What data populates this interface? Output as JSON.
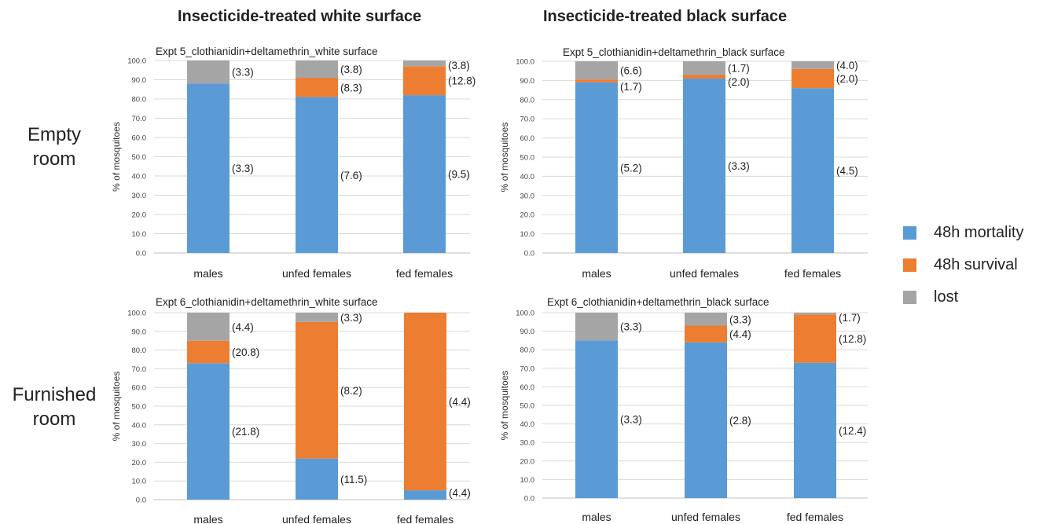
{
  "column_titles": [
    "Insecticide-treated white surface",
    "Insecticide-treated black surface"
  ],
  "row_labels": [
    [
      "Empty",
      "room"
    ],
    [
      "Furnished",
      "room"
    ]
  ],
  "legend": [
    {
      "label": "48h mortality",
      "color": "#5b9bd5"
    },
    {
      "label": "48h survival",
      "color": "#ed7d31"
    },
    {
      "label": "lost",
      "color": "#a5a5a5"
    }
  ],
  "chart_data": [
    {
      "type": "bar",
      "stacked": true,
      "title": "Expt 5_clothianidin+deltamethrin_white  surface",
      "ylabel": "% of mosquitoes",
      "ylim": [
        0,
        100
      ],
      "yticks": [
        "0.0",
        "10.0",
        "20.0",
        "30.0",
        "40.0",
        "50.0",
        "60.0",
        "70.0",
        "80.0",
        "90.0",
        "100.0"
      ],
      "categories": [
        "males",
        "unfed females",
        "fed females"
      ],
      "series": [
        {
          "name": "48h mortality",
          "values": [
            88,
            81,
            82
          ],
          "labels": [
            "(3.3)",
            "(7.6)",
            "(9.5)"
          ]
        },
        {
          "name": "48h survival",
          "values": [
            0,
            10,
            15
          ],
          "labels": [
            "",
            "(8.3)",
            "(12.8)"
          ]
        },
        {
          "name": "lost",
          "values": [
            12,
            9,
            3
          ],
          "labels": [
            "(3.3)",
            "(3.8)",
            "(3.8)"
          ]
        }
      ]
    },
    {
      "type": "bar",
      "stacked": true,
      "title": "Expt 5_clothianidin+deltamethrin_black  surface",
      "ylabel": "% of mosquitoes",
      "ylim": [
        0,
        100
      ],
      "yticks": [
        "0.0",
        "10.0",
        "20.0",
        "30.0",
        "40.0",
        "50.0",
        "60.0",
        "70.0",
        "80.0",
        "90.0",
        "100.0"
      ],
      "categories": [
        "males",
        "unfed females",
        "fed females"
      ],
      "series": [
        {
          "name": "48h mortality",
          "values": [
            89,
            91,
            86
          ],
          "labels": [
            "(5.2)",
            "(3.3)",
            "(4.5)"
          ]
        },
        {
          "name": "48h survival",
          "values": [
            1.5,
            2,
            10
          ],
          "labels": [
            "(1.7)",
            "(2.0)",
            "(2.0)"
          ]
        },
        {
          "name": "lost",
          "values": [
            9.5,
            7,
            4
          ],
          "labels": [
            "(6.6)",
            "(1.7)",
            "(4.0)"
          ]
        }
      ]
    },
    {
      "type": "bar",
      "stacked": true,
      "title": "Expt 6_clothianidin+deltamethrin_white  surface",
      "ylabel": "% of mosquitoes",
      "ylim": [
        0,
        100
      ],
      "yticks": [
        "0.0",
        "10.0",
        "20.0",
        "30.0",
        "40.0",
        "50.0",
        "60.0",
        "70.0",
        "80.0",
        "90.0",
        "100.0"
      ],
      "categories": [
        "males",
        "unfed females",
        "fed females"
      ],
      "series": [
        {
          "name": "48h mortality",
          "values": [
            73,
            22,
            5
          ],
          "labels": [
            "(21.8)",
            "(11.5)",
            "(4.4)"
          ]
        },
        {
          "name": "48h survival",
          "values": [
            12,
            73,
            95
          ],
          "labels": [
            "(20.8)",
            "(8.2)",
            "(4.4)"
          ]
        },
        {
          "name": "lost",
          "values": [
            15,
            5,
            0
          ],
          "labels": [
            "(4.4)",
            "(3.3)",
            ""
          ]
        }
      ]
    },
    {
      "type": "bar",
      "stacked": true,
      "title": "Expt 6_clothianidin+deltamethrin_black  surface",
      "ylabel": "% of mosquitoes",
      "ylim": [
        0,
        100
      ],
      "yticks": [
        "0.0",
        "10.0",
        "20.0",
        "30.0",
        "40.0",
        "50.0",
        "60.0",
        "70.0",
        "80.0",
        "90.0",
        "100.0"
      ],
      "categories": [
        "males",
        "unfed females",
        "fed females"
      ],
      "series": [
        {
          "name": "48h mortality",
          "values": [
            85,
            84,
            73
          ],
          "labels": [
            "(3.3)",
            "(2.8)",
            "(12.4)"
          ]
        },
        {
          "name": "48h survival",
          "values": [
            0,
            9,
            26
          ],
          "labels": [
            "",
            "(4.4)",
            "(12.8)"
          ]
        },
        {
          "name": "lost",
          "values": [
            15,
            7,
            1
          ],
          "labels": [
            "(3.3)",
            "(3.3)",
            "(1.7)"
          ]
        }
      ]
    }
  ]
}
